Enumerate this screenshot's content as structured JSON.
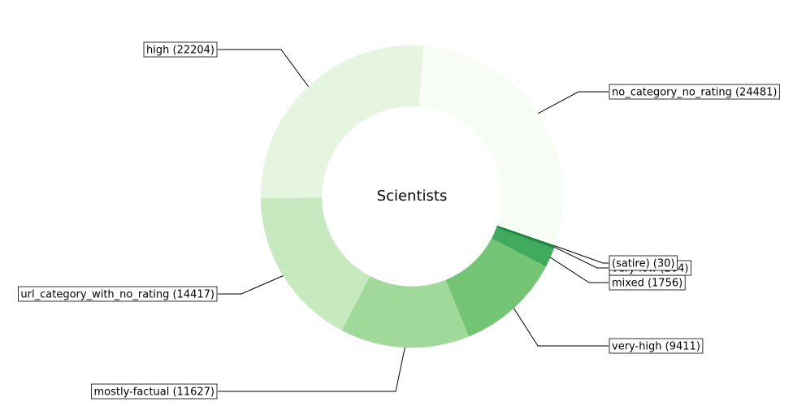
{
  "chart_data": {
    "type": "donut",
    "title": "Scientists",
    "labels": [
      "no_category_no_rating (24481)",
      "high (22204)",
      "url_category_with_no_rating (14417)",
      "mostly-factual (11627)",
      "very-high (9411)",
      "mixed (1756)",
      "very-low (204)",
      "(satire) (30)"
    ],
    "values": [
      24481,
      22204,
      14417,
      11627,
      9411,
      1756,
      204,
      30
    ],
    "colors": [
      "#f7fcf5",
      "#e5f5e0",
      "#c7e9c0",
      "#a1d99b",
      "#74c476",
      "#41ab5d",
      "#238b45",
      "#006d2c"
    ]
  }
}
